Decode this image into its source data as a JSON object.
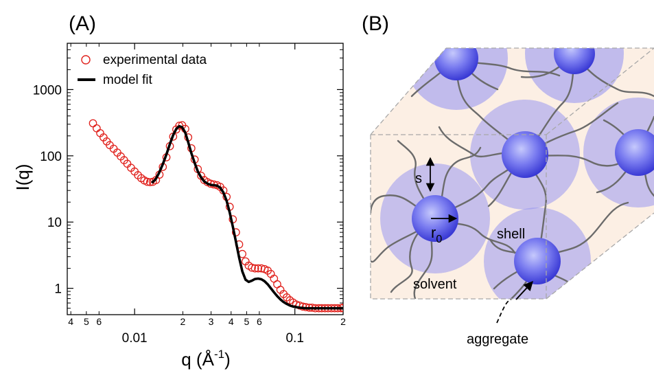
{
  "panels": {
    "a_label": "(A)",
    "b_label": "(B)"
  },
  "chart_data": {
    "type": "scatter",
    "title": "",
    "xlabel": "q (Å",
    "xlabel_exp": "-1",
    "ylabel": "I(q)",
    "xscale": "log",
    "yscale": "log",
    "xlim": [
      0.0038,
      0.2
    ],
    "ylim": [
      0.4,
      5000
    ],
    "x_ticks_major": [
      {
        "value": 0.01,
        "label": "0.01"
      },
      {
        "value": 0.1,
        "label": "0.1"
      }
    ],
    "x_ticks_minor": [
      {
        "value": 0.004,
        "label": "4"
      },
      {
        "value": 0.005,
        "label": "5"
      },
      {
        "value": 0.006,
        "label": "6"
      },
      {
        "value": 0.02,
        "label": "2"
      },
      {
        "value": 0.03,
        "label": "3"
      },
      {
        "value": 0.04,
        "label": "4"
      },
      {
        "value": 0.05,
        "label": "5"
      },
      {
        "value": 0.06,
        "label": "6"
      },
      {
        "value": 0.2,
        "label": "2"
      }
    ],
    "y_ticks": [
      {
        "value": 1,
        "label": "1"
      },
      {
        "value": 10,
        "label": "10"
      },
      {
        "value": 100,
        "label": "100"
      },
      {
        "value": 1000,
        "label": "1000"
      }
    ],
    "legend_position": "top-left",
    "series": [
      {
        "name": "experimental data",
        "marker": "open-circle",
        "color": "#e0201b",
        "points": [
          [
            0.0055,
            310
          ],
          [
            0.0058,
            260
          ],
          [
            0.0061,
            220
          ],
          [
            0.0064,
            190
          ],
          [
            0.0067,
            165
          ],
          [
            0.007,
            145
          ],
          [
            0.0074,
            128
          ],
          [
            0.0078,
            112
          ],
          [
            0.0082,
            98
          ],
          [
            0.0086,
            86
          ],
          [
            0.009,
            76
          ],
          [
            0.0095,
            66
          ],
          [
            0.01,
            58
          ],
          [
            0.0105,
            51
          ],
          [
            0.011,
            46
          ],
          [
            0.0115,
            42.5
          ],
          [
            0.012,
            40.5
          ],
          [
            0.0125,
            40
          ],
          [
            0.013,
            40.5
          ],
          [
            0.0136,
            43
          ],
          [
            0.0143,
            52
          ],
          [
            0.015,
            68
          ],
          [
            0.0158,
            95
          ],
          [
            0.0166,
            140
          ],
          [
            0.0174,
            195
          ],
          [
            0.0182,
            250
          ],
          [
            0.019,
            285
          ],
          [
            0.0198,
            290
          ],
          [
            0.0207,
            255
          ],
          [
            0.0216,
            190
          ],
          [
            0.0226,
            130
          ],
          [
            0.0237,
            88
          ],
          [
            0.0248,
            63
          ],
          [
            0.026,
            50
          ],
          [
            0.0272,
            43
          ],
          [
            0.0285,
            40
          ],
          [
            0.0298,
            38
          ],
          [
            0.0312,
            37
          ],
          [
            0.0327,
            36
          ],
          [
            0.0342,
            34
          ],
          [
            0.0358,
            30
          ],
          [
            0.0375,
            24
          ],
          [
            0.0392,
            17
          ],
          [
            0.041,
            11
          ],
          [
            0.0429,
            7
          ],
          [
            0.0449,
            4.6
          ],
          [
            0.047,
            3.3
          ],
          [
            0.0492,
            2.55
          ],
          [
            0.0515,
            2.2
          ],
          [
            0.0539,
            2.05
          ],
          [
            0.0564,
            2.0
          ],
          [
            0.059,
            2.0
          ],
          [
            0.0618,
            2.0
          ],
          [
            0.0647,
            1.95
          ],
          [
            0.0677,
            1.85
          ],
          [
            0.0708,
            1.65
          ],
          [
            0.0741,
            1.4
          ],
          [
            0.0776,
            1.15
          ],
          [
            0.0812,
            0.95
          ],
          [
            0.085,
            0.82
          ],
          [
            0.089,
            0.73
          ],
          [
            0.0931,
            0.66
          ],
          [
            0.0975,
            0.61
          ],
          [
            0.102,
            0.57
          ],
          [
            0.107,
            0.55
          ],
          [
            0.112,
            0.53
          ],
          [
            0.117,
            0.52
          ],
          [
            0.123,
            0.51
          ],
          [
            0.128,
            0.51
          ],
          [
            0.134,
            0.5
          ],
          [
            0.141,
            0.5
          ],
          [
            0.147,
            0.5
          ],
          [
            0.154,
            0.5
          ],
          [
            0.161,
            0.5
          ],
          [
            0.169,
            0.5
          ],
          [
            0.177,
            0.5
          ],
          [
            0.185,
            0.5
          ],
          [
            0.194,
            0.5
          ],
          [
            0.199,
            0.51
          ]
        ]
      },
      {
        "name": "model fit",
        "marker": "line",
        "color": "#000000",
        "points": [
          [
            0.0128,
            39
          ],
          [
            0.0135,
            44
          ],
          [
            0.0142,
            55
          ],
          [
            0.015,
            75
          ],
          [
            0.0158,
            105
          ],
          [
            0.0166,
            150
          ],
          [
            0.0174,
            205
          ],
          [
            0.0182,
            255
          ],
          [
            0.019,
            280
          ],
          [
            0.0198,
            270
          ],
          [
            0.0207,
            225
          ],
          [
            0.0216,
            160
          ],
          [
            0.0226,
            110
          ],
          [
            0.0237,
            78
          ],
          [
            0.0248,
            58
          ],
          [
            0.026,
            47
          ],
          [
            0.0272,
            41
          ],
          [
            0.0285,
            38
          ],
          [
            0.0298,
            36.5
          ],
          [
            0.0312,
            36
          ],
          [
            0.0327,
            35.5
          ],
          [
            0.0342,
            33
          ],
          [
            0.0358,
            28
          ],
          [
            0.0375,
            21
          ],
          [
            0.0392,
            14
          ],
          [
            0.041,
            8.5
          ],
          [
            0.0429,
            5
          ],
          [
            0.0449,
            2.9
          ],
          [
            0.047,
            1.8
          ],
          [
            0.0492,
            1.35
          ],
          [
            0.0515,
            1.25
          ],
          [
            0.0539,
            1.3
          ],
          [
            0.0564,
            1.38
          ],
          [
            0.059,
            1.4
          ],
          [
            0.0618,
            1.37
          ],
          [
            0.0647,
            1.28
          ],
          [
            0.0677,
            1.15
          ],
          [
            0.0708,
            1.0
          ],
          [
            0.0741,
            0.87
          ],
          [
            0.0776,
            0.76
          ],
          [
            0.0812,
            0.68
          ],
          [
            0.085,
            0.62
          ],
          [
            0.089,
            0.58
          ],
          [
            0.0931,
            0.55
          ],
          [
            0.0975,
            0.53
          ],
          [
            0.102,
            0.52
          ],
          [
            0.107,
            0.51
          ],
          [
            0.117,
            0.5
          ],
          [
            0.134,
            0.5
          ],
          [
            0.154,
            0.5
          ],
          [
            0.177,
            0.5
          ],
          [
            0.2,
            0.5
          ]
        ]
      }
    ]
  },
  "diagram": {
    "labels": {
      "s": "s",
      "r0_main": "r",
      "r0_sub": "0",
      "shell": "shell",
      "solvent": "solvent",
      "aggregate": "aggregate"
    },
    "colors": {
      "box_fill": "#fcefe4",
      "shell_fill": "#8f8ff2",
      "core_light": "#b9bdfa",
      "core_dark": "#3838d8",
      "chain": "#6b6b6b",
      "box_edge": "#a8a8a8"
    }
  }
}
